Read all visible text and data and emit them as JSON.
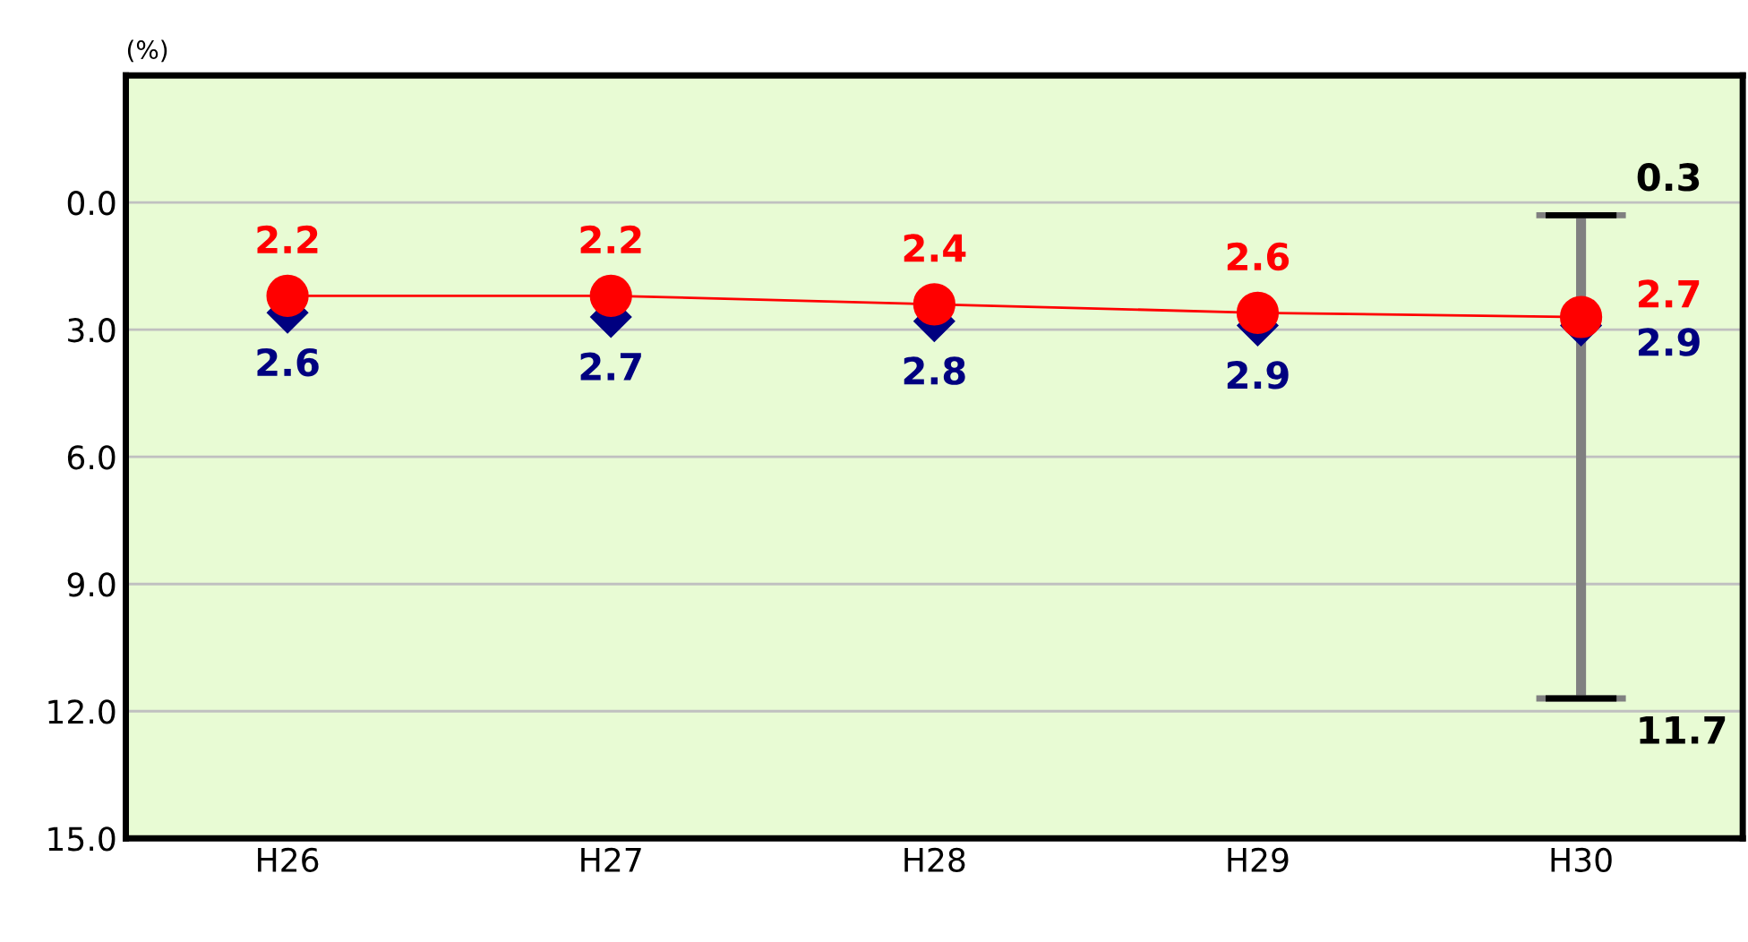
{
  "chart_data": {
    "type": "line",
    "ylabel": "(%)",
    "categories": [
      "H26",
      "H27",
      "H28",
      "H29",
      "H30"
    ],
    "series": [
      {
        "type": "scatter",
        "color": "#000080",
        "marker": "diamond",
        "values": [
          2.6,
          2.7,
          2.8,
          2.9,
          2.9
        ],
        "errors": [
          null,
          null,
          null,
          null,
          [
            0.3,
            11.7
          ]
        ]
      },
      {
        "color": "#ff0000",
        "marker": "circle",
        "values": [
          2.2,
          2.2,
          2.4,
          2.6,
          2.7
        ]
      }
    ],
    "ylim": [
      15,
      -3
    ],
    "yticks": [
      {
        "value": 0,
        "label": "0.0"
      },
      {
        "value": 3,
        "label": "3.0"
      },
      {
        "value": 6,
        "label": "6.0"
      },
      {
        "value": 9,
        "label": "9.0"
      },
      {
        "value": 12,
        "label": "12.0"
      },
      {
        "value": 15,
        "label": "15.0"
      }
    ],
    "grid": "y",
    "data_labels": true,
    "annotations": [
      {
        "text": "0.3",
        "x": "H30",
        "y": 0.3
      },
      {
        "text": "11.7",
        "x": "H30",
        "y": 11.7
      }
    ]
  }
}
